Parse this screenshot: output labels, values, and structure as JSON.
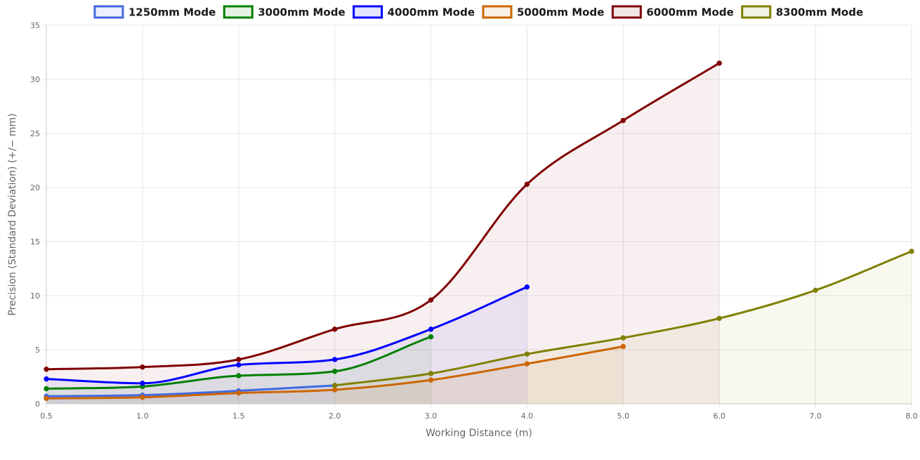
{
  "chart_data": {
    "type": "line",
    "title": "",
    "xlabel": "Working Distance (m)",
    "ylabel": "Precision (Standard Deviation) (+/− mm)",
    "x_ticks": [
      "0.5",
      "1.0",
      "1.5",
      "2.0",
      "3.0",
      "4.0",
      "5.0",
      "6.0",
      "7.0",
      "8.0"
    ],
    "y_ticks": [
      "0",
      "5",
      "10",
      "15",
      "20",
      "25",
      "30",
      "35"
    ],
    "ylim": [
      0,
      35
    ],
    "grid": true,
    "legend_position": "top",
    "filled_area": true,
    "series": [
      {
        "name": "1250mm Mode",
        "color": "#4169e1",
        "points": [
          {
            "x": "0.5",
            "y": 0.7
          },
          {
            "x": "1.0",
            "y": 0.8
          },
          {
            "x": "1.5",
            "y": 1.2
          },
          {
            "x": "2.0",
            "y": 1.7
          }
        ]
      },
      {
        "name": "3000mm Mode",
        "color": "#008000",
        "points": [
          {
            "x": "0.5",
            "y": 1.4
          },
          {
            "x": "1.0",
            "y": 1.6
          },
          {
            "x": "1.5",
            "y": 2.6
          },
          {
            "x": "2.0",
            "y": 3.0
          },
          {
            "x": "3.0",
            "y": 6.2
          }
        ]
      },
      {
        "name": "4000mm Mode",
        "color": "#0000ff",
        "points": [
          {
            "x": "0.5",
            "y": 2.3
          },
          {
            "x": "1.0",
            "y": 1.9
          },
          {
            "x": "1.5",
            "y": 3.6
          },
          {
            "x": "2.0",
            "y": 4.1
          },
          {
            "x": "3.0",
            "y": 6.9
          },
          {
            "x": "4.0",
            "y": 10.8
          }
        ]
      },
      {
        "name": "5000mm Mode",
        "color": "#cc6600",
        "points": [
          {
            "x": "0.5",
            "y": 0.5
          },
          {
            "x": "1.0",
            "y": 0.6
          },
          {
            "x": "1.5",
            "y": 1.0
          },
          {
            "x": "2.0",
            "y": 1.3
          },
          {
            "x": "3.0",
            "y": 2.2
          },
          {
            "x": "4.0",
            "y": 3.7
          },
          {
            "x": "5.0",
            "y": 5.3
          }
        ]
      },
      {
        "name": "6000mm Mode",
        "color": "#800000",
        "points": [
          {
            "x": "0.5",
            "y": 3.2
          },
          {
            "x": "1.0",
            "y": 3.4
          },
          {
            "x": "1.5",
            "y": 4.1
          },
          {
            "x": "2.0",
            "y": 6.9
          },
          {
            "x": "3.0",
            "y": 9.6
          },
          {
            "x": "4.0",
            "y": 20.3
          },
          {
            "x": "5.0",
            "y": 26.2
          },
          {
            "x": "6.0",
            "y": 31.5
          }
        ]
      },
      {
        "name": "8300mm Mode",
        "color": "#808000",
        "points": [
          {
            "x": "2.0",
            "y": 1.7
          },
          {
            "x": "3.0",
            "y": 2.8
          },
          {
            "x": "4.0",
            "y": 4.6
          },
          {
            "x": "5.0",
            "y": 6.1
          },
          {
            "x": "6.0",
            "y": 7.9
          },
          {
            "x": "7.0",
            "y": 10.5
          },
          {
            "x": "8.0",
            "y": 14.1
          }
        ]
      }
    ]
  }
}
